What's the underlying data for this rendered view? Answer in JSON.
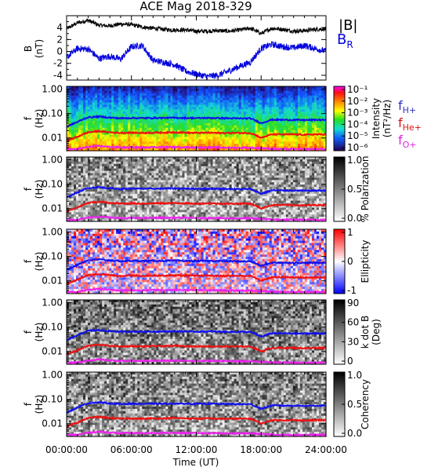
{
  "title": "ACE Mag 2018-329",
  "panel_bfield": {
    "ylabel_main": "B",
    "ylabel_unit": "(nT)",
    "legend_b": "|B|",
    "legend_br": "B",
    "legend_br_sub": "R",
    "colors": {
      "b": "#000000",
      "br": "#0000dd"
    }
  },
  "y_freq_label_main": "f",
  "y_freq_label_unit": "(Hz)",
  "freq_ticks": [
    "1.00",
    "0.10",
    "0.01"
  ],
  "ion_legend": [
    {
      "main": "f",
      "sub": "H+",
      "color": "#3030c8"
    },
    {
      "main": "f",
      "sub": "He+",
      "color": "#dd1010"
    },
    {
      "main": "f",
      "sub": "O+",
      "color": "#dd22dd"
    }
  ],
  "line_colors": {
    "h": "#1010ee",
    "he": "#ee1010",
    "o": "#ee20ee"
  },
  "panels": [
    {
      "id": "intensity",
      "cb_label": "Intensity",
      "cb_unit": "(nT²/Hz)",
      "cb_ticks": [
        "10⁻¹",
        "10⁻²",
        "10⁻³",
        "10⁻⁴",
        "10⁻⁵",
        "10⁻⁶"
      ]
    },
    {
      "id": "polarization",
      "cb_label": "% Polarization",
      "cb_ticks": [
        "1.0",
        "0.5",
        "0.0"
      ]
    },
    {
      "id": "ellipticity",
      "cb_label": "Ellipticity",
      "cb_ticks": [
        "1",
        "0",
        "-1"
      ]
    },
    {
      "id": "kdotb",
      "cb_label": "k dot B",
      "cb_unit": "(Deg)",
      "cb_ticks": [
        "90",
        "60",
        "30",
        "0"
      ]
    },
    {
      "id": "coherency",
      "cb_label": "Coherency",
      "cb_ticks": [
        "1.0",
        "0.5",
        "0.0"
      ]
    }
  ],
  "xlabel": "Time (UT)",
  "x_ticks": [
    "00:00:00",
    "06:00:00",
    "12:00:00",
    "18:00:00",
    "24:00:00"
  ],
  "chart_data": [
    {
      "type": "line",
      "title": "ACE Mag 2018-329",
      "xlabel": "Time (UT)",
      "ylabel": "B (nT)",
      "x_hours": [
        0,
        1,
        2,
        3,
        4,
        5,
        6,
        7,
        8,
        9,
        10,
        11,
        12,
        13,
        14,
        15,
        16,
        17,
        18,
        19,
        20,
        21,
        22,
        23,
        24
      ],
      "ylim": [
        -4.8,
        6
      ],
      "yticks": [
        -4,
        -2,
        0,
        2,
        4
      ],
      "series": [
        {
          "name": "|B|",
          "values": [
            3.8,
            4.8,
            5.2,
            4.4,
            4.3,
            4.6,
            4.5,
            4.1,
            3.9,
            3.7,
            3.6,
            3.6,
            3.4,
            3.4,
            3.5,
            3.4,
            3.6,
            3.9,
            3.0,
            3.9,
            3.7,
            3.4,
            3.5,
            3.7,
            3.8
          ]
        },
        {
          "name": "B_R",
          "values": [
            -1.0,
            0.5,
            0.4,
            -1.2,
            -0.8,
            -1.3,
            0.8,
            1.0,
            -1.5,
            -1.8,
            -2.2,
            -3.3,
            -3.8,
            -4.2,
            -4.0,
            -3.3,
            -2.5,
            -1.8,
            0.5,
            1.2,
            0.8,
            0.6,
            1.0,
            0.5,
            0.0
          ]
        }
      ]
    },
    {
      "type": "heatmap",
      "panels": [
        "Intensity",
        "% Polarization",
        "Ellipticity",
        "k dot B",
        "Coherency"
      ],
      "ylabel": "f (Hz)",
      "yscale": "log",
      "ylim": [
        0.003,
        1.3
      ],
      "x_hours": [
        0,
        1,
        2,
        3,
        4,
        5,
        6,
        7,
        8,
        9,
        10,
        11,
        12,
        13,
        14,
        15,
        16,
        17,
        18,
        19,
        20,
        21,
        22,
        23,
        24
      ],
      "series": [
        {
          "name": "f_H+",
          "values": [
            0.028,
            0.045,
            0.07,
            0.075,
            0.068,
            0.064,
            0.066,
            0.065,
            0.066,
            0.066,
            0.067,
            0.066,
            0.065,
            0.066,
            0.065,
            0.064,
            0.063,
            0.063,
            0.04,
            0.056,
            0.055,
            0.055,
            0.054,
            0.055,
            0.055
          ]
        },
        {
          "name": "f_He+",
          "values": [
            0.0075,
            0.011,
            0.017,
            0.019,
            0.017,
            0.016,
            0.0165,
            0.016,
            0.0165,
            0.0165,
            0.017,
            0.0165,
            0.016,
            0.0165,
            0.016,
            0.016,
            0.016,
            0.016,
            0.01,
            0.014,
            0.014,
            0.014,
            0.0135,
            0.014,
            0.014
          ]
        },
        {
          "name": "f_O+",
          "values": [
            0.0035,
            0.0035,
            0.0043,
            0.0047,
            0.0043,
            0.0041,
            0.0041,
            0.0041,
            0.0042,
            0.0042,
            0.0042,
            0.0042,
            0.0041,
            0.0041,
            0.0041,
            0.004,
            0.004,
            0.004,
            0.0038,
            0.0036,
            0.0035,
            0.0035,
            0.0035,
            0.0035,
            0.0035
          ]
        }
      ]
    }
  ]
}
